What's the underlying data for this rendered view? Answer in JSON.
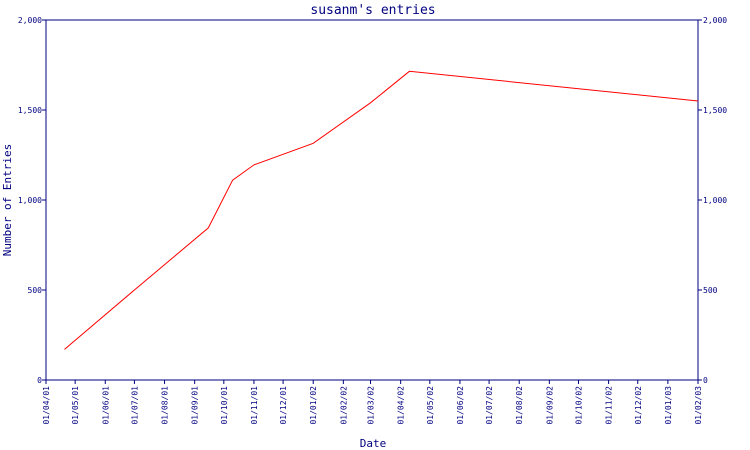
{
  "chart_data": {
    "type": "line",
    "title": "susanm's entries",
    "xlabel": "Date",
    "ylabel": "Number of Entries",
    "ylim": [
      0,
      2000
    ],
    "yticks": [
      {
        "value": 0,
        "label": "0"
      },
      {
        "value": 500,
        "label": "500"
      },
      {
        "value": 1000,
        "label": "1,000"
      },
      {
        "value": 1500,
        "label": "1,500"
      },
      {
        "value": 2000,
        "label": "2,000"
      }
    ],
    "xticks": [
      "01/04/01",
      "01/05/01",
      "01/06/01",
      "01/07/01",
      "01/08/01",
      "01/09/01",
      "01/10/01",
      "01/11/01",
      "01/12/01",
      "01/01/02",
      "01/02/02",
      "01/03/02",
      "01/04/02",
      "01/05/02",
      "01/06/02",
      "01/07/02",
      "01/08/02",
      "01/09/02",
      "01/10/02",
      "01/11/02",
      "01/12/02",
      "01/01/03",
      "01/02/03"
    ],
    "grid": false,
    "colors": {
      "line": "#ff0000",
      "axis": "#000080",
      "text": "#000080"
    },
    "series": [
      {
        "points": [
          {
            "x": "2001-04-20",
            "y": 170
          },
          {
            "x": "2001-07-01",
            "y": 500
          },
          {
            "x": "2001-09-15",
            "y": 845
          },
          {
            "x": "2001-10-10",
            "y": 1110
          },
          {
            "x": "2001-11-01",
            "y": 1195
          },
          {
            "x": "2002-01-01",
            "y": 1315
          },
          {
            "x": "2002-03-01",
            "y": 1540
          },
          {
            "x": "2002-04-10",
            "y": 1715
          },
          {
            "x": "2003-02-01",
            "y": 1550
          }
        ]
      }
    ]
  }
}
